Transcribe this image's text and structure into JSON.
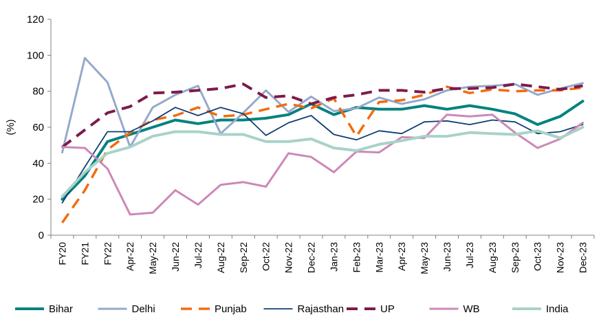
{
  "chart_data": {
    "type": "line",
    "title": "",
    "xlabel": "",
    "ylabel": "(%)",
    "ylim": [
      0,
      120
    ],
    "yticks": [
      "0",
      "20",
      "40",
      "60",
      "80",
      "100",
      "120"
    ],
    "categories": [
      "FY20",
      "FY21",
      "FY22",
      "Apr-22",
      "May-22",
      "Jun-22",
      "Jul-22",
      "Aug-22",
      "Sep-22",
      "Oct-22",
      "Nov-22",
      "Dec-22",
      "Jan-23",
      "Feb-23",
      "Mar-23",
      "Apr-23",
      "May-23",
      "Jun-23",
      "Jul-23",
      "Aug-23",
      "Sep-23",
      "Oct-23",
      "Nov-23",
      "Dec-23"
    ],
    "series": [
      {
        "name": "Bihar",
        "color": "#00827F",
        "width": 4,
        "dash": "",
        "values": [
          20,
          33,
          52,
          56,
          60,
          64,
          62,
          64,
          64,
          65,
          67,
          73,
          67,
          71,
          70,
          70,
          72,
          70,
          72,
          70,
          67.5,
          61.5,
          66,
          74.5
        ]
      },
      {
        "name": "Delhi",
        "color": "#95A9C9",
        "width": 3,
        "dash": "",
        "values": [
          46,
          98.5,
          85,
          49,
          71,
          78,
          83,
          56.5,
          68,
          80.5,
          68.5,
          77,
          69,
          70.5,
          76.5,
          73,
          75.5,
          80.5,
          82.5,
          83,
          84,
          78,
          81.5,
          84.5
        ]
      },
      {
        "name": "Punjab",
        "color": "#F26B0F",
        "width": 3.5,
        "dash": "16,10",
        "values": [
          7,
          25,
          47.5,
          57,
          64,
          66.5,
          71,
          66,
          67,
          70,
          73,
          70.5,
          76,
          55,
          74,
          75,
          78,
          82.5,
          79,
          81,
          80,
          80.5,
          80.5,
          82
        ]
      },
      {
        "name": "Rajasthan",
        "color": "#0F3D75",
        "width": 1.8,
        "dash": "",
        "values": [
          18,
          38,
          57.5,
          57.5,
          63.5,
          71,
          66.5,
          71,
          67.5,
          55.5,
          62.5,
          66.5,
          56,
          53,
          58,
          56.5,
          63,
          63.5,
          61.5,
          64,
          63,
          56.5,
          57.5,
          61.5
        ]
      },
      {
        "name": "UP",
        "color": "#7D1A4B",
        "width": 4,
        "dash": "16,10",
        "values": [
          49,
          58.5,
          68,
          71.5,
          79,
          79.5,
          80.5,
          81.5,
          84,
          76.5,
          77.5,
          73,
          76.5,
          78,
          80.5,
          80.5,
          79.5,
          81.5,
          81.5,
          82,
          84,
          82.5,
          81,
          83
        ]
      },
      {
        "name": "WB",
        "color": "#CC88B7",
        "width": 3,
        "dash": "",
        "values": [
          49,
          48.5,
          37,
          11.5,
          12.5,
          25,
          17,
          28,
          29.5,
          27,
          45.5,
          43.5,
          35,
          46.5,
          46,
          54.5,
          54,
          67,
          66,
          67,
          57,
          48.5,
          53.5,
          62.5
        ]
      },
      {
        "name": "India",
        "color": "#A9D2C8",
        "width": 4,
        "dash": "",
        "values": [
          21.5,
          35,
          45.5,
          49,
          55,
          57.5,
          57.5,
          56,
          56,
          52,
          52,
          53.5,
          48.5,
          47,
          50.5,
          52.5,
          55,
          55,
          57,
          56.5,
          56,
          58,
          54,
          60
        ]
      }
    ],
    "legend_position": "bottom"
  }
}
